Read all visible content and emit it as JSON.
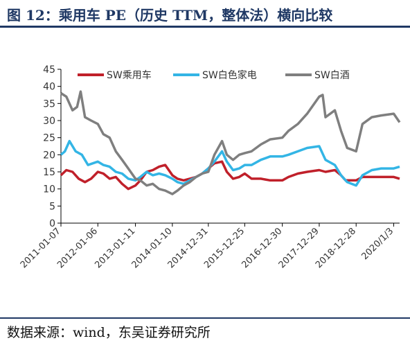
{
  "header": {
    "title": "图 12：乘用车 PE（历史 TTM，整体法）横向比较"
  },
  "footer": {
    "source": "数据来源：wind，东吴证券研究所"
  },
  "colors": {
    "title": "#1f3864",
    "series_car": "#c0202a",
    "series_appliance": "#33b5e5",
    "series_liquor": "#7f7f7f",
    "axis": "#000000"
  },
  "chart_data": {
    "type": "line",
    "title": "",
    "xlabel": "",
    "ylabel": "",
    "ylim": [
      0,
      45
    ],
    "yticks": [
      0,
      5,
      10,
      15,
      20,
      25,
      30,
      35,
      40,
      45
    ],
    "xlim": [
      "2011-01-07",
      "2020-03-01"
    ],
    "xticks": [
      "2011-01-07",
      "2012-01-06",
      "2013-01-11",
      "2014-01-10",
      "2014-12-31",
      "2015-12-25",
      "2016-12-30",
      "2017-12-29",
      "2018-12-28",
      "2020/1/3"
    ],
    "grid": false,
    "legend": "top",
    "series": [
      {
        "name": "SW乘用车",
        "color": "#c0202a",
        "points": [
          [
            "2011-01-07",
            14
          ],
          [
            "2011-03-01",
            15.5
          ],
          [
            "2011-05-01",
            15
          ],
          [
            "2011-07-01",
            13
          ],
          [
            "2011-09-01",
            12
          ],
          [
            "2011-11-01",
            13
          ],
          [
            "2012-01-06",
            15
          ],
          [
            "2012-03-01",
            14.5
          ],
          [
            "2012-05-01",
            13
          ],
          [
            "2012-07-01",
            13.5
          ],
          [
            "2012-09-01",
            11.5
          ],
          [
            "2012-11-01",
            10
          ],
          [
            "2013-01-11",
            11
          ],
          [
            "2013-03-01",
            12.5
          ],
          [
            "2013-05-01",
            15
          ],
          [
            "2013-07-01",
            15.5
          ],
          [
            "2013-09-01",
            16.5
          ],
          [
            "2013-11-01",
            17
          ],
          [
            "2014-01-10",
            14
          ],
          [
            "2014-03-01",
            13
          ],
          [
            "2014-05-01",
            12.5
          ],
          [
            "2014-07-01",
            13
          ],
          [
            "2014-09-01",
            13.5
          ],
          [
            "2014-11-01",
            14.5
          ],
          [
            "2014-12-31",
            16
          ],
          [
            "2015-03-01",
            17.5
          ],
          [
            "2015-05-15",
            18
          ],
          [
            "2015-07-01",
            15
          ],
          [
            "2015-09-01",
            13
          ],
          [
            "2015-11-01",
            13.5
          ],
          [
            "2015-12-25",
            14.5
          ],
          [
            "2016-03-01",
            13
          ],
          [
            "2016-06-01",
            13
          ],
          [
            "2016-09-01",
            12.5
          ],
          [
            "2016-12-30",
            12.5
          ],
          [
            "2017-03-01",
            13.5
          ],
          [
            "2017-06-01",
            14.5
          ],
          [
            "2017-09-01",
            15
          ],
          [
            "2017-12-29",
            15.5
          ],
          [
            "2018-03-01",
            15
          ],
          [
            "2018-06-01",
            15.5
          ],
          [
            "2018-08-01",
            14
          ],
          [
            "2018-09-15",
            12.5
          ],
          [
            "2018-12-28",
            12.5
          ],
          [
            "2019-03-01",
            13.5
          ],
          [
            "2019-06-01",
            13.5
          ],
          [
            "2019-09-01",
            13.5
          ],
          [
            "2020-01-03",
            13.5
          ],
          [
            "2020-03-01",
            13
          ]
        ]
      },
      {
        "name": "SW白色家电",
        "color": "#33b5e5",
        "points": [
          [
            "2011-01-07",
            20
          ],
          [
            "2011-02-15",
            21
          ],
          [
            "2011-04-01",
            24
          ],
          [
            "2011-06-01",
            21
          ],
          [
            "2011-08-01",
            20
          ],
          [
            "2011-10-01",
            17
          ],
          [
            "2012-01-06",
            18
          ],
          [
            "2012-03-01",
            17
          ],
          [
            "2012-05-01",
            16.5
          ],
          [
            "2012-07-01",
            15
          ],
          [
            "2012-09-01",
            14.5
          ],
          [
            "2012-11-01",
            13
          ],
          [
            "2013-01-11",
            12.5
          ],
          [
            "2013-03-01",
            13.5
          ],
          [
            "2013-05-01",
            15
          ],
          [
            "2013-07-01",
            14
          ],
          [
            "2013-09-01",
            14.5
          ],
          [
            "2013-11-01",
            14
          ],
          [
            "2014-01-10",
            13
          ],
          [
            "2014-03-01",
            12
          ],
          [
            "2014-05-01",
            11.5
          ],
          [
            "2014-07-01",
            12.5
          ],
          [
            "2014-09-01",
            13.5
          ],
          [
            "2014-11-01",
            14.5
          ],
          [
            "2014-12-31",
            16
          ],
          [
            "2015-03-01",
            18
          ],
          [
            "2015-05-15",
            21
          ],
          [
            "2015-07-01",
            18
          ],
          [
            "2015-09-01",
            15.5
          ],
          [
            "2015-11-01",
            16
          ],
          [
            "2015-12-25",
            17
          ],
          [
            "2016-03-01",
            17
          ],
          [
            "2016-06-01",
            18.5
          ],
          [
            "2016-09-01",
            19.5
          ],
          [
            "2016-12-30",
            19.5
          ],
          [
            "2017-03-01",
            20
          ],
          [
            "2017-06-01",
            21
          ],
          [
            "2017-09-01",
            22
          ],
          [
            "2017-12-29",
            22.5
          ],
          [
            "2018-03-01",
            18.5
          ],
          [
            "2018-06-01",
            17
          ],
          [
            "2018-08-01",
            14
          ],
          [
            "2018-10-01",
            12
          ],
          [
            "2018-12-28",
            11
          ],
          [
            "2019-03-01",
            14
          ],
          [
            "2019-06-01",
            15.5
          ],
          [
            "2019-09-01",
            16
          ],
          [
            "2020-01-03",
            16
          ],
          [
            "2020-03-01",
            16.5
          ]
        ]
      },
      {
        "name": "SW白酒",
        "color": "#7f7f7f",
        "points": [
          [
            "2011-01-07",
            38
          ],
          [
            "2011-03-01",
            37
          ],
          [
            "2011-05-01",
            33
          ],
          [
            "2011-06-15",
            34
          ],
          [
            "2011-07-20",
            38.5
          ],
          [
            "2011-09-01",
            31
          ],
          [
            "2011-11-01",
            30
          ],
          [
            "2012-01-06",
            29
          ],
          [
            "2012-03-01",
            26
          ],
          [
            "2012-05-01",
            25
          ],
          [
            "2012-07-01",
            21
          ],
          [
            "2012-09-01",
            18.5
          ],
          [
            "2012-11-01",
            16
          ],
          [
            "2013-01-11",
            13
          ],
          [
            "2013-03-01",
            12.5
          ],
          [
            "2013-05-01",
            11
          ],
          [
            "2013-07-01",
            11.5
          ],
          [
            "2013-09-01",
            10
          ],
          [
            "2013-11-01",
            9.5
          ],
          [
            "2014-01-10",
            8.5
          ],
          [
            "2014-03-01",
            9.5
          ],
          [
            "2014-05-01",
            11
          ],
          [
            "2014-07-01",
            12
          ],
          [
            "2014-09-01",
            13.5
          ],
          [
            "2014-11-01",
            14.5
          ],
          [
            "2014-12-31",
            15
          ],
          [
            "2015-03-01",
            20
          ],
          [
            "2015-05-15",
            24
          ],
          [
            "2015-07-01",
            20
          ],
          [
            "2015-09-01",
            18.5
          ],
          [
            "2015-11-01",
            20
          ],
          [
            "2015-12-25",
            20.5
          ],
          [
            "2016-03-01",
            21
          ],
          [
            "2016-06-01",
            23
          ],
          [
            "2016-09-01",
            24.5
          ],
          [
            "2016-12-30",
            25
          ],
          [
            "2017-03-01",
            27
          ],
          [
            "2017-06-01",
            29
          ],
          [
            "2017-09-01",
            32
          ],
          [
            "2017-12-29",
            37
          ],
          [
            "2018-02-01",
            37.5
          ],
          [
            "2018-03-01",
            31
          ],
          [
            "2018-06-01",
            33
          ],
          [
            "2018-08-01",
            27
          ],
          [
            "2018-10-01",
            22
          ],
          [
            "2018-12-28",
            21
          ],
          [
            "2019-03-01",
            29
          ],
          [
            "2019-06-01",
            31
          ],
          [
            "2019-09-01",
            31.5
          ],
          [
            "2020-01-03",
            32
          ],
          [
            "2020-03-01",
            29.5
          ]
        ]
      }
    ]
  }
}
